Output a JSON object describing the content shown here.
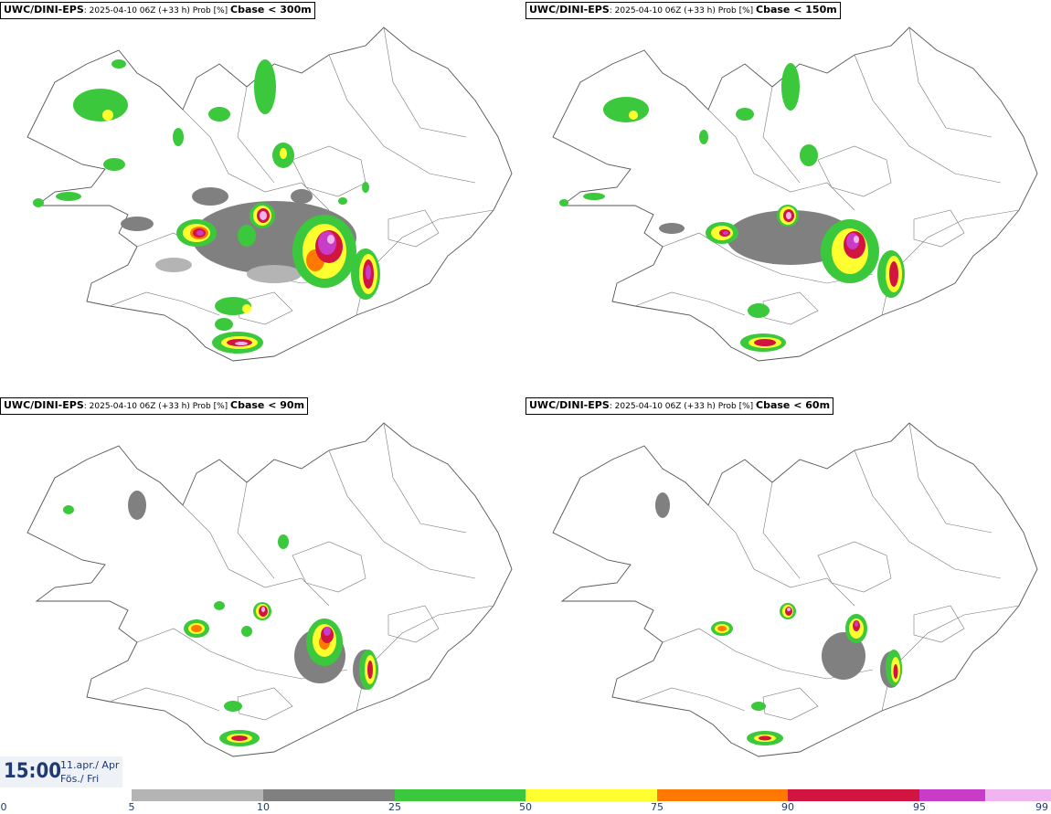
{
  "panels": [
    {
      "model": "UWC/DINI-EPS",
      "meta": ": 2025-04-10 06Z (+33 h) Prob [%] ",
      "threshold": "Cbase < 300m"
    },
    {
      "model": "UWC/DINI-EPS",
      "meta": ": 2025-04-10 06Z (+33 h) Prob [%] ",
      "threshold": "Cbase < 150m"
    },
    {
      "model": "UWC/DINI-EPS",
      "meta": ": 2025-04-10 06Z (+33 h) Prob [%] ",
      "threshold": "Cbase < 90m"
    },
    {
      "model": "UWC/DINI-EPS",
      "meta": ": 2025-04-10 06Z (+33 h) Prob [%] ",
      "threshold": "Cbase < 60m"
    }
  ],
  "valid_time": {
    "time": "15:00",
    "date_line1": "11.apr./ Apr",
    "date_line2": "Fös./ Fri"
  },
  "legend": {
    "ticks": [
      "0",
      "5",
      "10",
      "25",
      "50",
      "75",
      "90",
      "95",
      "99"
    ],
    "colors": [
      "#b4b4b4",
      "#808080",
      "#3cc83c",
      "#ffff30",
      "#ff7800",
      "#d21440",
      "#c83cc8",
      "#f0b4f0"
    ]
  },
  "colors": {
    "grey1": "#b4b4b4",
    "grey2": "#808080",
    "green": "#3cc83c",
    "yellow": "#ffff30",
    "orange": "#ff7800",
    "red": "#d21440",
    "magenta": "#c83cc8",
    "pink": "#f0b4f0"
  }
}
